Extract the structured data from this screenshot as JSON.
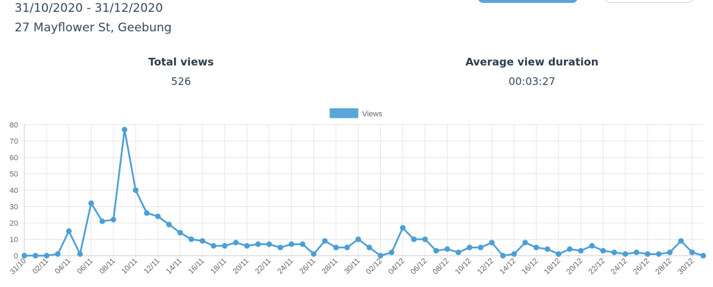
{
  "header": {
    "date_range": "31/10/2020 - 31/12/2020",
    "address": "27 Mayflower St, Geebung"
  },
  "stats": {
    "total_views_label": "Total views",
    "total_views_value": "526",
    "avg_duration_label": "Average view duration",
    "avg_duration_value": "00:03:27"
  },
  "colors": {
    "accent": "#5aa6dc",
    "line": "#4a9fd5",
    "grid": "#e6e6e6",
    "axis_text": "#666666"
  },
  "chart_data": {
    "type": "line",
    "legend": {
      "position": "top",
      "entries": [
        "Views"
      ]
    },
    "grid": true,
    "ylim": [
      0,
      80
    ],
    "yticks": [
      0,
      10,
      20,
      30,
      40,
      50,
      60,
      70,
      80
    ],
    "x_tick_labels": [
      "31/10",
      "02/11",
      "04/11",
      "06/11",
      "08/11",
      "10/11",
      "12/11",
      "14/11",
      "16/11",
      "18/11",
      "20/11",
      "22/11",
      "24/11",
      "26/11",
      "28/11",
      "30/11",
      "02/12",
      "04/12",
      "06/12",
      "08/12",
      "10/12",
      "12/12",
      "14/12",
      "16/12",
      "18/12",
      "20/12",
      "22/12",
      "24/12",
      "26/12",
      "28/12",
      "30/12"
    ],
    "series": [
      {
        "name": "Views",
        "values": [
          0,
          0,
          0,
          1,
          15,
          1,
          32,
          21,
          22,
          77,
          40,
          26,
          24,
          19,
          14,
          10,
          9,
          6,
          6,
          8,
          6,
          7,
          7,
          5,
          7,
          7,
          1,
          9,
          5,
          5,
          10,
          5,
          0,
          2,
          17,
          10,
          10,
          3,
          4,
          2,
          5,
          5,
          8,
          0,
          1,
          8,
          5,
          4,
          1,
          4,
          3,
          6,
          3,
          2,
          1,
          2,
          1,
          1,
          2,
          9,
          2,
          0
        ]
      }
    ]
  }
}
